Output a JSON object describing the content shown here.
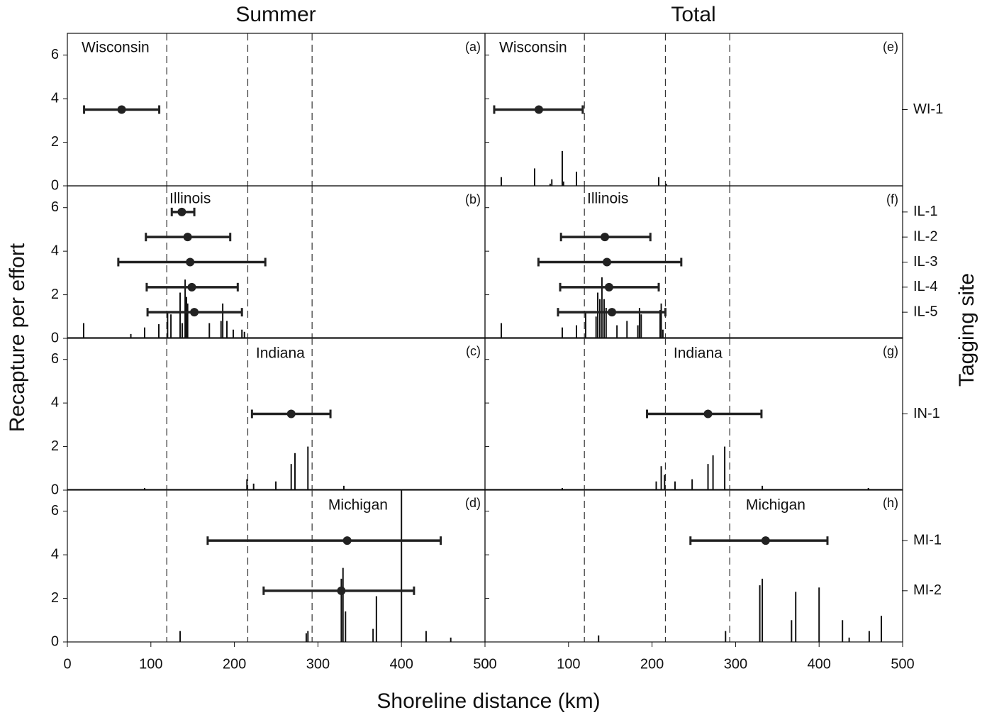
{
  "figure": {
    "columns": [
      "Summer",
      "Total"
    ],
    "xlabel": "Shoreline distance (km)",
    "ylabel": "Recapture per effort",
    "y2label": "Tagging site",
    "xlim": [
      0,
      500
    ],
    "xticks": [
      0,
      100,
      200,
      300,
      400,
      500
    ],
    "ylim": [
      0,
      7
    ],
    "yticks": [
      0,
      2,
      4,
      6
    ],
    "boundaries": [
      119,
      216,
      293
    ]
  },
  "chart_data": [
    {
      "type": "bar",
      "panel_label": "(a)",
      "region": "Wisconsin",
      "x": [],
      "values": [],
      "error_bars": [
        {
          "site": "WI-1",
          "y": 3.5,
          "mean": 65,
          "low": 20,
          "high": 110
        }
      ]
    },
    {
      "type": "bar",
      "panel_label": "(b)",
      "region": "Illinois",
      "x": [
        19.5,
        76,
        92.5,
        109.5,
        120,
        124,
        135,
        137.5,
        141,
        142.6,
        144,
        170,
        184,
        186,
        191,
        198.6,
        209,
        212
      ],
      "values": [
        0.7,
        0.2,
        0.5,
        0.65,
        1.2,
        1.1,
        2.1,
        0.7,
        2.7,
        1.9,
        1.6,
        0.7,
        0.8,
        1.6,
        0.8,
        0.4,
        0.4,
        0.3
      ],
      "error_bars": [
        {
          "site": "IL-1",
          "y": 5.8,
          "mean": 137,
          "low": 125,
          "high": 152
        },
        {
          "site": "IL-2",
          "y": 4.65,
          "mean": 144,
          "low": 94,
          "high": 195
        },
        {
          "site": "IL-3",
          "y": 3.5,
          "mean": 147,
          "low": 61,
          "high": 237
        },
        {
          "site": "IL-4",
          "y": 2.35,
          "mean": 149,
          "low": 95,
          "high": 204
        },
        {
          "site": "IL-5",
          "y": 1.2,
          "mean": 152,
          "low": 96,
          "high": 209
        }
      ]
    },
    {
      "type": "bar",
      "panel_label": "(c)",
      "region": "Indiana",
      "x": [
        92.5,
        215,
        223,
        249.6,
        268,
        272.5,
        288,
        331
      ],
      "values": [
        0.1,
        0.5,
        0.3,
        0.4,
        1.2,
        1.7,
        2.0,
        0.2
      ],
      "error_bars": [
        {
          "site": "IN-1",
          "y": 3.5,
          "mean": 268,
          "low": 221,
          "high": 315
        }
      ]
    },
    {
      "type": "bar",
      "panel_label": "(d)",
      "region": "Michigan",
      "x": [
        135,
        286,
        288,
        328,
        330,
        333,
        366,
        370,
        400,
        429.5,
        459
      ],
      "values": [
        0.5,
        0.4,
        0.5,
        2.9,
        3.4,
        1.4,
        0.6,
        2.1,
        7,
        0.5,
        0.2
      ],
      "error_bars": [
        {
          "site": "MI-1",
          "y": 4.65,
          "mean": 335,
          "low": 168,
          "high": 447
        },
        {
          "site": "MI-2",
          "y": 2.35,
          "mean": 328,
          "low": 235,
          "high": 415
        }
      ]
    },
    {
      "type": "bar",
      "panel_label": "(e)",
      "region": "Wisconsin",
      "x": [
        19.5,
        59.4,
        78,
        80,
        92.5,
        94,
        109.5,
        208,
        217
      ],
      "values": [
        0.4,
        0.8,
        0.1,
        0.3,
        1.6,
        0.2,
        0.65,
        0.4,
        0.1
      ],
      "error_bars": [
        {
          "y": 3.5,
          "mean": 64.5,
          "low": 11,
          "high": 117
        }
      ]
    },
    {
      "type": "bar",
      "panel_label": "(f)",
      "region": "Illinois",
      "x": [
        19.5,
        92.5,
        109.5,
        120.5,
        133,
        135,
        137.5,
        140,
        142.6,
        145,
        158,
        170,
        183,
        185,
        187,
        209.7,
        211,
        213
      ],
      "values": [
        0.7,
        0.5,
        0.6,
        1.2,
        1.0,
        2.1,
        1.8,
        2.8,
        1.8,
        1.4,
        0.6,
        0.8,
        0.6,
        1.4,
        1.1,
        1.3,
        1.6,
        0.4
      ],
      "error_bars": [
        {
          "y": 4.65,
          "mean": 143.5,
          "low": 91,
          "high": 198
        },
        {
          "y": 3.5,
          "mean": 146,
          "low": 64,
          "high": 235
        },
        {
          "y": 2.35,
          "mean": 148.5,
          "low": 90,
          "high": 208
        },
        {
          "y": 1.2,
          "mean": 152,
          "low": 87.4,
          "high": 216
        }
      ]
    },
    {
      "type": "bar",
      "panel_label": "(g)",
      "region": "Indiana",
      "x": [
        92.5,
        205,
        211,
        215,
        227.5,
        248,
        267,
        273,
        287,
        332,
        459
      ],
      "values": [
        0.1,
        0.4,
        1.1,
        0.7,
        0.4,
        0.5,
        1.2,
        1.6,
        2.0,
        0.2,
        0.1
      ],
      "error_bars": [
        {
          "y": 3.5,
          "mean": 267,
          "low": 194,
          "high": 331
        }
      ]
    },
    {
      "type": "bar",
      "panel_label": "(h)",
      "region": "Michigan",
      "x": [
        136,
        288,
        329,
        332,
        367,
        372,
        400,
        428,
        436,
        460,
        474.5
      ],
      "values": [
        0.3,
        0.5,
        2.6,
        2.9,
        1.0,
        2.3,
        2.5,
        1.0,
        0.2,
        0.5,
        1.2
      ],
      "error_bars": [
        {
          "y": 4.65,
          "mean": 336,
          "low": 246,
          "high": 410
        }
      ]
    }
  ]
}
